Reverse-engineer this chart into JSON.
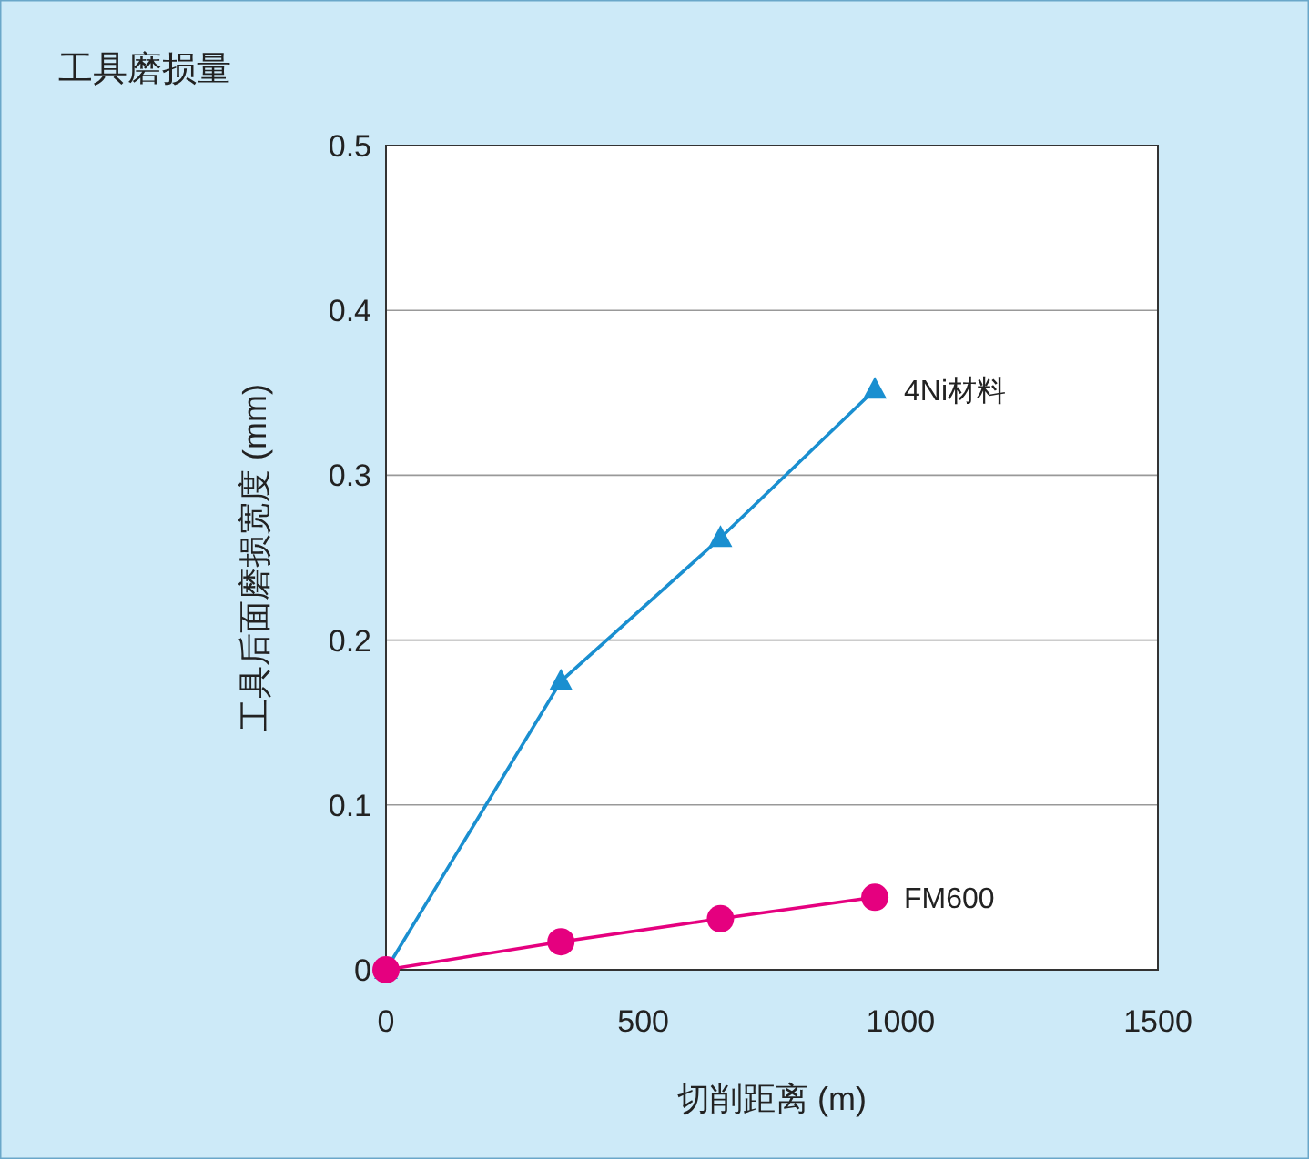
{
  "chart_data": {
    "type": "line",
    "title": "工具磨损量",
    "xlabel": "切削距离 (m)",
    "ylabel": "工具后面磨损宽度 (mm)",
    "x": [
      0,
      340,
      650,
      950
    ],
    "series": [
      {
        "name": "4Ni材料",
        "color": "#1a8fd0",
        "marker": "triangle",
        "values": [
          0,
          0.175,
          0.262,
          0.352
        ]
      },
      {
        "name": "FM600",
        "color": "#e5007f",
        "marker": "circle",
        "values": [
          0,
          0.017,
          0.031,
          0.044
        ]
      }
    ],
    "xlim": [
      0,
      1500
    ],
    "xticks": [
      0,
      500,
      1000,
      1500
    ],
    "ylim": [
      0,
      0.5
    ],
    "yticks": [
      0,
      0.1,
      0.2,
      0.3,
      0.4,
      0.5
    ],
    "grid": "y"
  }
}
